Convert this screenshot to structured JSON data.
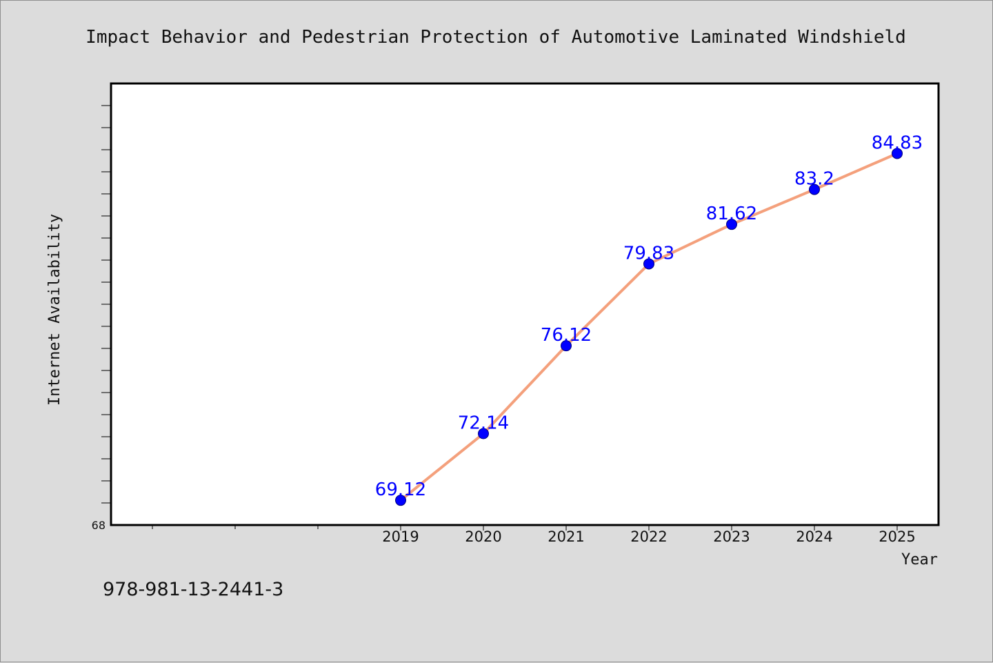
{
  "chart_data": {
    "type": "line",
    "title": "Impact Behavior and Pedestrian Protection of Automotive Laminated Windshield",
    "xlabel": "Year",
    "ylabel": "Internet Availability",
    "categories": [
      "2019",
      "2020",
      "2021",
      "2022",
      "2023",
      "2024",
      "2025"
    ],
    "series": [
      {
        "values": [
          69.12,
          72.14,
          76.12,
          79.83,
          81.62,
          83.2,
          84.83
        ],
        "labels": [
          "69.12",
          "72.14",
          "76.12",
          "79.83",
          "81.62",
          "83.2",
          "84.83"
        ]
      }
    ],
    "ylim": [
      68,
      88
    ],
    "y_tick_labels": [
      "68"
    ],
    "grid": false,
    "colors": {
      "line": "#f4a07c",
      "marker": "#0000ff",
      "value_label": "#0000ff",
      "background": "#dcdcdc",
      "plot_bg": "#ffffff"
    }
  },
  "footer_code": "978-981-13-2441-3"
}
